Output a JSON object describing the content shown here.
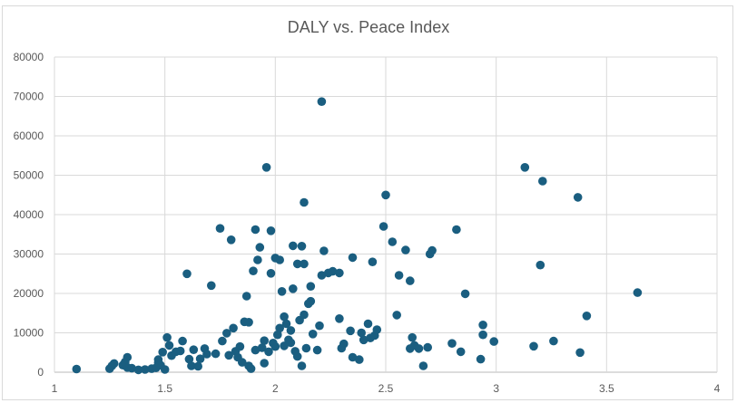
{
  "chart_data": {
    "type": "scatter",
    "title": "DALY vs. Peace Index",
    "xlabel": "",
    "ylabel": "",
    "xlim": [
      1,
      4
    ],
    "ylim": [
      0,
      80000
    ],
    "x_ticks": [
      "1",
      "1.5",
      "2",
      "2.5",
      "3",
      "3.5",
      "4"
    ],
    "y_ticks": [
      "0",
      "10000",
      "20000",
      "30000",
      "40000",
      "50000",
      "60000",
      "70000",
      "80000"
    ],
    "grid": true,
    "legend": "none",
    "marker_color": "#1a5e80",
    "series": [
      {
        "name": "DALY",
        "points": [
          [
            1.1,
            800
          ],
          [
            1.25,
            900
          ],
          [
            1.26,
            1600
          ],
          [
            1.27,
            2200
          ],
          [
            1.31,
            1800
          ],
          [
            1.32,
            2600
          ],
          [
            1.33,
            3800
          ],
          [
            1.33,
            1200
          ],
          [
            1.35,
            1000
          ],
          [
            1.38,
            600
          ],
          [
            1.41,
            700
          ],
          [
            1.44,
            900
          ],
          [
            1.46,
            1100
          ],
          [
            1.47,
            2400
          ],
          [
            1.47,
            3200
          ],
          [
            1.48,
            1800
          ],
          [
            1.49,
            5100
          ],
          [
            1.5,
            700
          ],
          [
            1.51,
            8800
          ],
          [
            1.52,
            6800
          ],
          [
            1.53,
            4200
          ],
          [
            1.55,
            5200
          ],
          [
            1.57,
            5400
          ],
          [
            1.58,
            7900
          ],
          [
            1.6,
            25000
          ],
          [
            1.61,
            3300
          ],
          [
            1.62,
            1600
          ],
          [
            1.63,
            5700
          ],
          [
            1.65,
            1500
          ],
          [
            1.66,
            3400
          ],
          [
            1.68,
            6000
          ],
          [
            1.69,
            4600
          ],
          [
            1.71,
            22000
          ],
          [
            1.73,
            4700
          ],
          [
            1.75,
            36500
          ],
          [
            1.76,
            7900
          ],
          [
            1.78,
            9900
          ],
          [
            1.79,
            4300
          ],
          [
            1.8,
            33600
          ],
          [
            1.81,
            11200
          ],
          [
            1.82,
            5300
          ],
          [
            1.83,
            3800
          ],
          [
            1.84,
            6500
          ],
          [
            1.85,
            2500
          ],
          [
            1.86,
            12800
          ],
          [
            1.87,
            19300
          ],
          [
            1.88,
            12700
          ],
          [
            1.88,
            1600
          ],
          [
            1.89,
            900
          ],
          [
            1.9,
            25700
          ],
          [
            1.91,
            5600
          ],
          [
            1.91,
            36200
          ],
          [
            1.92,
            28500
          ],
          [
            1.93,
            31700
          ],
          [
            1.94,
            6200
          ],
          [
            1.95,
            8000
          ],
          [
            1.95,
            2300
          ],
          [
            1.96,
            52000
          ],
          [
            1.97,
            5200
          ],
          [
            1.98,
            25100
          ],
          [
            1.98,
            35900
          ],
          [
            1.99,
            7400
          ],
          [
            2.0,
            6500
          ],
          [
            2.0,
            29000
          ],
          [
            2.01,
            9500
          ],
          [
            2.02,
            11200
          ],
          [
            2.02,
            28500
          ],
          [
            2.03,
            20500
          ],
          [
            2.04,
            6700
          ],
          [
            2.04,
            14100
          ],
          [
            2.05,
            12300
          ],
          [
            2.06,
            8200
          ],
          [
            2.07,
            7500
          ],
          [
            2.07,
            10600
          ],
          [
            2.08,
            21200
          ],
          [
            2.08,
            32100
          ],
          [
            2.09,
            5300
          ],
          [
            2.1,
            4000
          ],
          [
            2.1,
            27500
          ],
          [
            2.11,
            13200
          ],
          [
            2.12,
            32000
          ],
          [
            2.12,
            1600
          ],
          [
            2.13,
            14600
          ],
          [
            2.13,
            27500
          ],
          [
            2.13,
            43100
          ],
          [
            2.14,
            6100
          ],
          [
            2.15,
            17400
          ],
          [
            2.16,
            21800
          ],
          [
            2.16,
            18000
          ],
          [
            2.17,
            9700
          ],
          [
            2.19,
            5600
          ],
          [
            2.2,
            11800
          ],
          [
            2.21,
            68700
          ],
          [
            2.21,
            24600
          ],
          [
            2.22,
            30800
          ],
          [
            2.24,
            25200
          ],
          [
            2.26,
            25600
          ],
          [
            2.29,
            25200
          ],
          [
            2.29,
            13600
          ],
          [
            2.3,
            6100
          ],
          [
            2.31,
            7200
          ],
          [
            2.34,
            10500
          ],
          [
            2.35,
            29100
          ],
          [
            2.35,
            3800
          ],
          [
            2.38,
            3200
          ],
          [
            2.39,
            10000
          ],
          [
            2.4,
            8200
          ],
          [
            2.42,
            12300
          ],
          [
            2.43,
            8700
          ],
          [
            2.44,
            28000
          ],
          [
            2.45,
            9300
          ],
          [
            2.46,
            10800
          ],
          [
            2.49,
            37000
          ],
          [
            2.5,
            45000
          ],
          [
            2.53,
            33100
          ],
          [
            2.55,
            14500
          ],
          [
            2.56,
            24600
          ],
          [
            2.59,
            31000
          ],
          [
            2.61,
            6000
          ],
          [
            2.61,
            23200
          ],
          [
            2.62,
            8800
          ],
          [
            2.63,
            6800
          ],
          [
            2.65,
            6000
          ],
          [
            2.67,
            1600
          ],
          [
            2.69,
            6300
          ],
          [
            2.7,
            30000
          ],
          [
            2.71,
            30900
          ],
          [
            2.8,
            7300
          ],
          [
            2.82,
            36200
          ],
          [
            2.84,
            5200
          ],
          [
            2.86,
            19900
          ],
          [
            2.93,
            3300
          ],
          [
            2.94,
            12000
          ],
          [
            2.94,
            9500
          ],
          [
            2.99,
            7800
          ],
          [
            3.13,
            52000
          ],
          [
            3.17,
            6600
          ],
          [
            3.2,
            27200
          ],
          [
            3.21,
            48500
          ],
          [
            3.26,
            7900
          ],
          [
            3.37,
            44400
          ],
          [
            3.38,
            5000
          ],
          [
            3.41,
            14300
          ],
          [
            3.64,
            20200
          ]
        ]
      }
    ]
  }
}
